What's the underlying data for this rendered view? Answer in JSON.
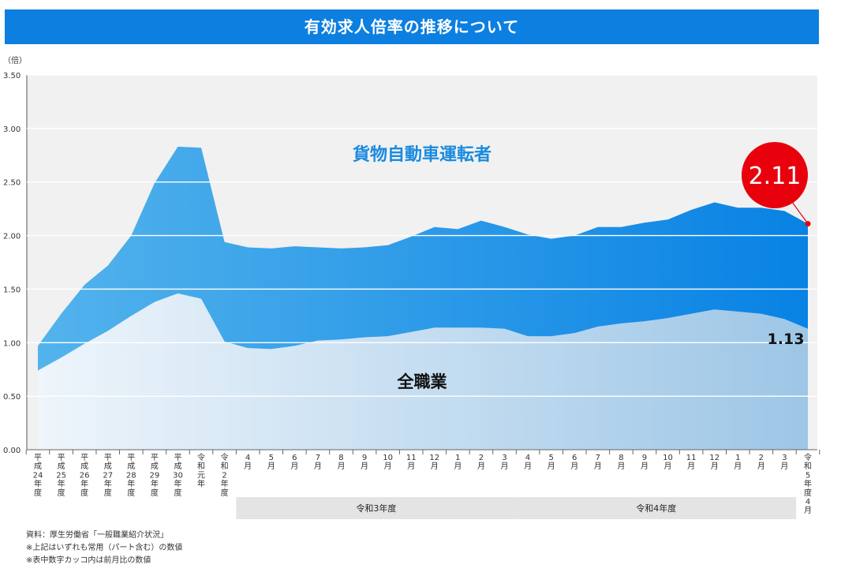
{
  "banner_title": "有効求人倍率の推移について",
  "notes": [
    "資料：厚生労働省「一般職業紹介状況」",
    "※上記はいずれも常用（パート含む）の数値",
    "※表中数字カッコ内は前月比の数値"
  ],
  "chart_data": {
    "type": "area",
    "title": "有効求人倍率の推移について",
    "y_unit": "（倍）",
    "ylim": [
      0,
      3.5
    ],
    "yticks": [
      "0.00",
      "0.50",
      "1.00",
      "1.50",
      "2.00",
      "2.50",
      "3.00",
      "3.50"
    ],
    "grid": true,
    "categories": [
      "平成24年度",
      "平成25年度",
      "平成26年度",
      "平成27年度",
      "平成28年度",
      "平成29年度",
      "平成30年度",
      "令和元年",
      "令和2年度",
      "4月",
      "5月",
      "6月",
      "7月",
      "8月",
      "9月",
      "10月",
      "11月",
      "12月",
      "1月",
      "2月",
      "3月",
      "4月",
      "5月",
      "6月",
      "7月",
      "8月",
      "9月",
      "10月",
      "11月",
      "12月",
      "1月",
      "2月",
      "3月",
      "令和5年度4月"
    ],
    "groups": [
      {
        "label": "令和3年度",
        "from": 9,
        "to": 20
      },
      {
        "label": "令和4年度",
        "from": 21,
        "to": 32
      }
    ],
    "series": [
      {
        "name": "貨物自動車運転者",
        "color": "#1e8fe8",
        "values": [
          0.97,
          1.27,
          1.54,
          1.72,
          2.0,
          2.49,
          2.83,
          2.82,
          1.94,
          1.89,
          1.88,
          1.9,
          1.89,
          1.88,
          1.89,
          1.91,
          1.99,
          2.08,
          2.06,
          2.14,
          2.08,
          2.01,
          1.97,
          2.0,
          2.08,
          2.08,
          2.12,
          2.15,
          2.24,
          2.31,
          2.26,
          2.26,
          2.23,
          2.11
        ]
      },
      {
        "name": "全職業",
        "color": "#c8def0",
        "values": [
          0.74,
          0.86,
          0.99,
          1.11,
          1.25,
          1.38,
          1.46,
          1.41,
          1.01,
          0.95,
          0.94,
          0.97,
          1.02,
          1.03,
          1.05,
          1.06,
          1.1,
          1.14,
          1.14,
          1.14,
          1.13,
          1.06,
          1.06,
          1.09,
          1.15,
          1.18,
          1.2,
          1.23,
          1.27,
          1.31,
          1.29,
          1.27,
          1.22,
          1.13
        ]
      }
    ],
    "callouts": {
      "last_top": "2.11",
      "last_bottom": "1.13"
    },
    "colors": {
      "grid": "#ffffff",
      "plot_bg": "#f2f2f2",
      "accent": "#e8000d"
    }
  }
}
